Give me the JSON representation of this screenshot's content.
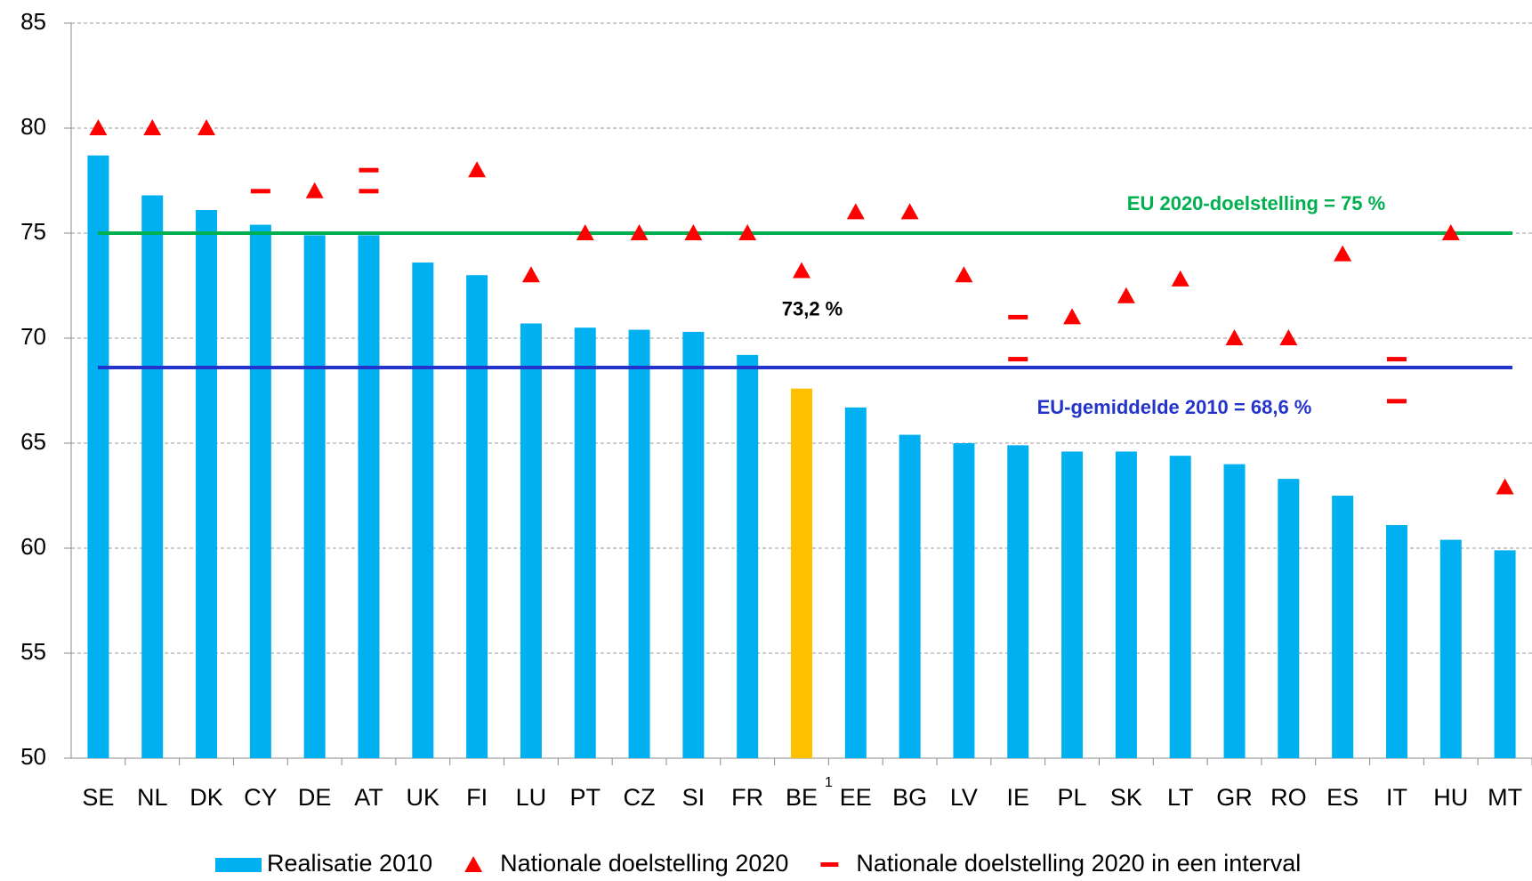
{
  "chart_data": {
    "type": "bar",
    "categories": [
      "SE",
      "NL",
      "DK",
      "CY",
      "DE",
      "AT",
      "UK",
      "FI",
      "LU",
      "PT",
      "CZ",
      "SI",
      "FR",
      "BE",
      "EE",
      "BG",
      "LV",
      "IE",
      "PL",
      "SK",
      "LT",
      "GR",
      "RO",
      "ES",
      "IT",
      "HU",
      "MT"
    ],
    "category_superscripts": [
      null,
      null,
      null,
      null,
      null,
      null,
      null,
      null,
      null,
      null,
      null,
      null,
      null,
      "1",
      null,
      null,
      null,
      null,
      null,
      null,
      null,
      null,
      null,
      null,
      null,
      null,
      null
    ],
    "series": [
      {
        "name": "Realisatie 2010",
        "kind": "bar",
        "color": "#00b0f0",
        "colors": [
          "#00b0f0",
          "#00b0f0",
          "#00b0f0",
          "#00b0f0",
          "#00b0f0",
          "#00b0f0",
          "#00b0f0",
          "#00b0f0",
          "#00b0f0",
          "#00b0f0",
          "#00b0f0",
          "#00b0f0",
          "#00b0f0",
          "#ffc000",
          "#00b0f0",
          "#00b0f0",
          "#00b0f0",
          "#00b0f0",
          "#00b0f0",
          "#00b0f0",
          "#00b0f0",
          "#00b0f0",
          "#00b0f0",
          "#00b0f0",
          "#00b0f0",
          "#00b0f0",
          "#00b0f0"
        ],
        "values": [
          78.7,
          76.8,
          76.1,
          75.4,
          74.9,
          74.9,
          73.6,
          73.0,
          70.7,
          70.5,
          70.4,
          70.3,
          69.2,
          67.6,
          66.7,
          65.4,
          65.0,
          64.9,
          64.6,
          64.6,
          64.4,
          64.0,
          63.3,
          62.5,
          61.1,
          60.4,
          59.9
        ]
      },
      {
        "name": "Nationale doelstelling 2020",
        "kind": "triangle",
        "color": "#ff0000",
        "values": [
          80,
          80,
          80,
          null,
          77,
          null,
          null,
          78,
          73,
          75,
          75,
          75,
          75,
          73.2,
          76,
          76,
          73,
          null,
          71,
          72,
          72.8,
          70,
          70,
          74,
          null,
          75,
          62.9
        ],
        "value_labels": [
          null,
          null,
          null,
          null,
          null,
          null,
          null,
          null,
          null,
          null,
          null,
          null,
          null,
          "73,2 %",
          null,
          null,
          null,
          null,
          null,
          null,
          null,
          null,
          null,
          null,
          null,
          null,
          null
        ]
      },
      {
        "name": "Nationale doelstelling 2020 in een interval",
        "kind": "dash",
        "color": "#ff0000",
        "values": [
          null,
          null,
          null,
          77,
          null,
          77,
          null,
          null,
          null,
          null,
          null,
          null,
          null,
          null,
          null,
          null,
          null,
          69,
          null,
          null,
          null,
          null,
          null,
          null,
          67,
          null,
          null
        ],
        "upper": [
          null,
          null,
          null,
          null,
          null,
          78,
          null,
          null,
          null,
          null,
          null,
          null,
          null,
          null,
          null,
          null,
          null,
          71,
          null,
          null,
          null,
          null,
          null,
          null,
          69,
          null,
          null
        ]
      }
    ],
    "reference_lines": [
      {
        "value": 75,
        "label": "EU 2020-doelstelling = 75 %",
        "color": "#00b050"
      },
      {
        "value": 68.6,
        "label": "EU-gemiddelde 2010 = 68,6 %",
        "color": "#2433cc"
      }
    ],
    "ylim": [
      50,
      85
    ],
    "yticks": [
      50,
      55,
      60,
      65,
      70,
      75,
      80,
      85
    ],
    "grid": true
  }
}
